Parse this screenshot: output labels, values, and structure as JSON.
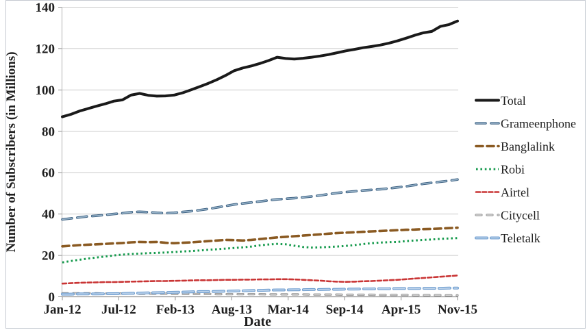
{
  "chart_data": {
    "type": "line",
    "title": "",
    "xlabel": "Date",
    "ylabel": "Number of Subscribers (in Millions)",
    "ylim": [
      0,
      140
    ],
    "y_ticks": [
      0,
      20,
      40,
      60,
      80,
      100,
      120,
      140
    ],
    "x_tick_labels": [
      "Jan-12",
      "Jul-12",
      "Feb-13",
      "Aug-13",
      "Mar-14",
      "Sep-14",
      "Apr-15",
      "Nov-15"
    ],
    "grid": "horizontal-only",
    "legend_position": "right",
    "x": [
      "Jan-12",
      "Feb-12",
      "Mar-12",
      "Apr-12",
      "May-12",
      "Jun-12",
      "Jul-12",
      "Aug-12",
      "Sep-12",
      "Oct-12",
      "Nov-12",
      "Dec-12",
      "Jan-13",
      "Feb-13",
      "Mar-13",
      "Apr-13",
      "May-13",
      "Jun-13",
      "Jul-13",
      "Aug-13",
      "Sep-13",
      "Oct-13",
      "Nov-13",
      "Dec-13",
      "Jan-14",
      "Feb-14",
      "Mar-14",
      "Apr-14",
      "May-14",
      "Jun-14",
      "Jul-14",
      "Aug-14",
      "Sep-14",
      "Oct-14",
      "Nov-14",
      "Dec-14",
      "Jan-15",
      "Feb-15",
      "Mar-15",
      "Apr-15",
      "May-15",
      "Jun-15",
      "Jul-15",
      "Aug-15",
      "Sep-15",
      "Oct-15",
      "Nov-15"
    ],
    "series": [
      {
        "name": "Total",
        "color": "#1a1a1a",
        "style": "solid",
        "width": 4,
        "values": [
          87.0,
          88.2,
          89.8,
          91.0,
          92.2,
          93.3,
          94.6,
          95.2,
          97.5,
          98.3,
          97.4,
          97.0,
          97.1,
          97.5,
          98.6,
          100.1,
          101.6,
          103.2,
          105.0,
          107.0,
          109.3,
          110.6,
          111.6,
          112.8,
          114.2,
          115.8,
          115.2,
          114.9,
          115.3,
          115.8,
          116.4,
          117.1,
          118.0,
          118.9,
          119.6,
          120.4,
          121.0,
          121.7,
          122.6,
          123.7,
          125.0,
          126.4,
          127.6,
          128.3,
          130.7,
          131.6,
          133.3
        ]
      },
      {
        "name": "Grameenphone",
        "color": "#3f6384",
        "color_light": "#9db8cd",
        "style": "long-dash",
        "dash": "14 8",
        "width": 3.6,
        "values": [
          37.4,
          37.9,
          38.4,
          38.9,
          39.2,
          39.6,
          40.0,
          40.4,
          40.9,
          41.1,
          40.9,
          40.6,
          40.4,
          40.6,
          41.0,
          41.4,
          41.9,
          42.5,
          43.2,
          43.9,
          44.6,
          45.1,
          45.6,
          46.1,
          46.6,
          47.1,
          47.4,
          47.7,
          48.1,
          48.5,
          49.0,
          49.6,
          50.2,
          50.6,
          51.0,
          51.4,
          51.7,
          52.0,
          52.4,
          52.9,
          53.4,
          54.0,
          54.6,
          55.1,
          55.6,
          56.1,
          56.7
        ]
      },
      {
        "name": "Banglalink",
        "color": "#8a5a22",
        "style": "dash",
        "dash": "10 6",
        "width": 3.6,
        "values": [
          24.4,
          24.7,
          25.0,
          25.2,
          25.4,
          25.6,
          25.8,
          26.0,
          26.3,
          26.5,
          26.4,
          26.5,
          26.1,
          25.9,
          26.1,
          26.3,
          26.6,
          26.9,
          27.2,
          27.5,
          27.4,
          27.2,
          27.5,
          27.9,
          28.3,
          28.7,
          29.0,
          29.3,
          29.6,
          29.9,
          30.2,
          30.5,
          30.8,
          31.0,
          31.2,
          31.4,
          31.6,
          31.8,
          32.0,
          32.2,
          32.4,
          32.5,
          32.7,
          32.8,
          33.0,
          33.2,
          33.4
        ]
      },
      {
        "name": "Robi",
        "color": "#169a4d",
        "style": "dot",
        "dash": "2.6 3.8",
        "width": 3,
        "values": [
          16.6,
          17.3,
          17.9,
          18.5,
          19.0,
          19.5,
          20.0,
          20.4,
          20.7,
          20.9,
          21.1,
          21.2,
          21.4,
          21.6,
          21.9,
          22.1,
          22.4,
          22.7,
          23.0,
          23.3,
          23.6,
          23.9,
          24.3,
          24.9,
          25.3,
          25.6,
          25.4,
          24.7,
          24.1,
          23.8,
          23.9,
          24.1,
          24.3,
          24.6,
          25.0,
          25.5,
          25.9,
          26.2,
          26.4,
          26.5,
          26.9,
          27.2,
          27.5,
          27.7,
          28.0,
          28.2,
          28.4
        ]
      },
      {
        "name": "Airtel",
        "color": "#c93434",
        "style": "short-dash",
        "dash": "6 3.2",
        "width": 2.6,
        "values": [
          6.4,
          6.6,
          6.8,
          6.9,
          7.0,
          7.1,
          7.1,
          7.2,
          7.3,
          7.4,
          7.5,
          7.6,
          7.6,
          7.7,
          7.8,
          7.9,
          8.0,
          8.0,
          8.1,
          8.2,
          8.2,
          8.3,
          8.3,
          8.4,
          8.4,
          8.5,
          8.5,
          8.4,
          8.2,
          8.0,
          7.8,
          7.5,
          7.3,
          7.2,
          7.3,
          7.5,
          7.6,
          7.8,
          8.0,
          8.2,
          8.5,
          8.8,
          9.1,
          9.4,
          9.7,
          10.0,
          10.3
        ]
      },
      {
        "name": "Citycell",
        "color": "#8f8f8f",
        "color_light": "#d6d6d6",
        "style": "dash",
        "dash": "8 8",
        "width": 3.2,
        "values": [
          1.7,
          1.7,
          1.7,
          1.7,
          1.7,
          1.6,
          1.6,
          1.6,
          1.6,
          1.5,
          1.5,
          1.5,
          1.5,
          1.4,
          1.4,
          1.4,
          1.4,
          1.4,
          1.3,
          1.3,
          1.3,
          1.3,
          1.3,
          1.3,
          1.2,
          1.2,
          1.2,
          1.2,
          1.2,
          1.1,
          1.1,
          1.1,
          1.1,
          1.0,
          1.0,
          1.0,
          1.0,
          0.9,
          0.9,
          0.9,
          0.9,
          0.8,
          0.8,
          0.8,
          0.8,
          0.7,
          0.7
        ]
      },
      {
        "name": "Teletalk",
        "color": "#6f9ed0",
        "color_light": "#bcd2ea",
        "style": "long-dash",
        "dash": "16 6",
        "width": 4,
        "values": [
          1.3,
          1.3,
          1.4,
          1.4,
          1.4,
          1.5,
          1.5,
          1.6,
          1.7,
          1.8,
          1.9,
          2.0,
          2.1,
          2.2,
          2.3,
          2.4,
          2.5,
          2.5,
          2.6,
          2.7,
          2.8,
          2.9,
          3.0,
          3.1,
          3.2,
          3.3,
          3.3,
          3.4,
          3.4,
          3.5,
          3.5,
          3.6,
          3.6,
          3.7,
          3.7,
          3.8,
          3.8,
          3.9,
          3.9,
          4.0,
          4.0,
          4.0,
          4.1,
          4.1,
          4.1,
          4.2,
          4.2
        ]
      }
    ]
  }
}
